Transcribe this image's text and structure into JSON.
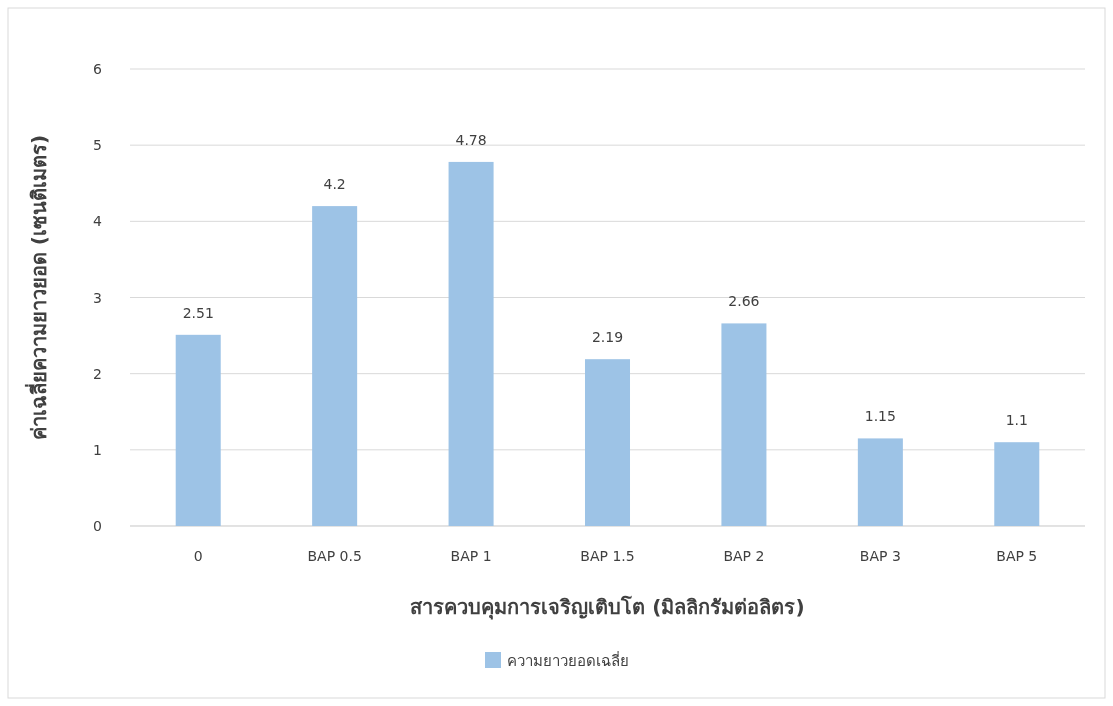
{
  "chart_data": {
    "type": "bar",
    "categories": [
      "0",
      "BAP 0.5",
      "BAP 1",
      "BAP 1.5",
      "BAP 2",
      "BAP 3",
      "BAP 5"
    ],
    "series": [
      {
        "name": "ความยาวยอดเฉลี่ย",
        "color": "#9dc3e6",
        "values": [
          2.51,
          4.2,
          4.78,
          2.19,
          2.66,
          1.15,
          1.1
        ]
      }
    ],
    "xlabel": "สารควบคุมการเจริญเติบโต (มิลลิกรัมต่อลิตร)",
    "ylabel": "ค่าเฉลี่ยความยาวยอด (เซนติเมตร)",
    "ylim": [
      0,
      6
    ],
    "yticks": [
      0,
      1,
      2,
      3,
      4,
      5,
      6
    ],
    "grid": "y",
    "legend": "bottom",
    "data_labels": true
  }
}
